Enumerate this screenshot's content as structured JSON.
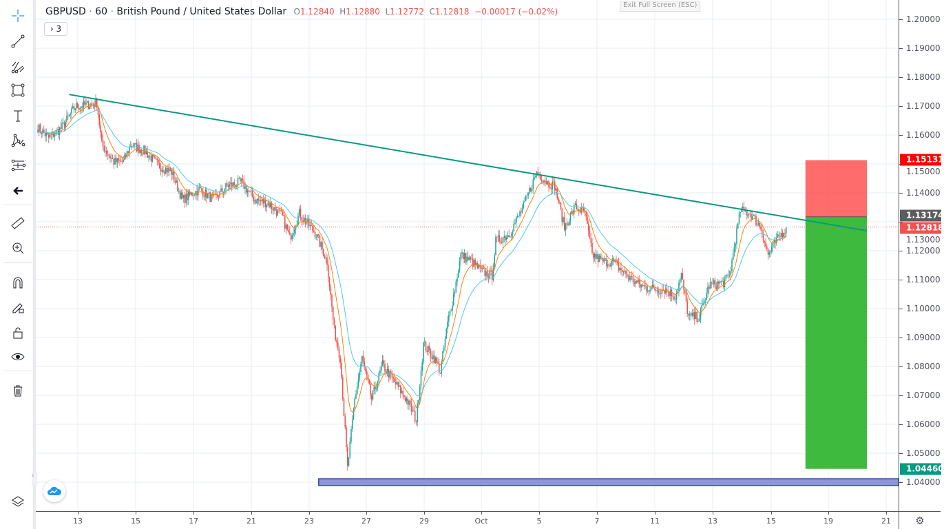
{
  "header": {
    "symbol": "GBPUSD",
    "interval": "60",
    "description": "British Pound / United States Dollar",
    "separator": "·",
    "open_label": "O",
    "open": "1.12840",
    "high_label": "H",
    "high": "1.12880",
    "low_label": "L",
    "low": "1.12772",
    "close_label": "C",
    "close": "1.12818",
    "change": "−0.00017 (−0.02%)",
    "indicators_toggle": "› 3",
    "exit_fullscreen": "Exit Full Screen (ESC)"
  },
  "toolbar": {
    "items": [
      "crosshair-icon",
      "trend-line-icon",
      "pitchfork-icon",
      "rectangle-icon",
      "text-icon",
      "pattern-icon",
      "long-position-icon",
      "back-arrow-icon",
      "ruler-icon",
      "zoom-in-icon",
      "magnet-icon",
      "draw-lock-pencil-icon",
      "unlock-icon",
      "eye-icon",
      "trash-icon",
      "layers-icon"
    ]
  },
  "price_axis": {
    "labels": [
      "1.20000",
      "1.19000",
      "1.18000",
      "1.17000",
      "1.16000",
      "1.15000",
      "1.14000",
      "1.13000",
      "1.12000",
      "1.11000",
      "1.10000",
      "1.09000",
      "1.08000",
      "1.07000",
      "1.06000",
      "1.05000",
      "1.04000"
    ],
    "tags": [
      {
        "text": "1.15131",
        "price": 1.15131,
        "color": "#ff0000"
      },
      {
        "text": "1.13174",
        "price": 1.13174,
        "color": "#5d5d5d"
      },
      {
        "text": "1.12818",
        "price": 1.12818,
        "color": "#ef5350"
      },
      {
        "text": "1.04460",
        "price": 1.0446,
        "color": "#089981"
      }
    ]
  },
  "time_axis": {
    "labels": [
      "13",
      "15",
      "17",
      "21",
      "23",
      "27",
      "29",
      "Oct",
      "5",
      "7",
      "11",
      "13",
      "15",
      "19",
      "21"
    ]
  },
  "chart_data": {
    "type": "candlestick",
    "ylim": [
      1.035,
      1.2067
    ],
    "interval_minutes": 60,
    "price_path": [
      [
        0,
        1.1626
      ],
      [
        9,
        1.159
      ],
      [
        20,
        1.1626
      ],
      [
        31,
        1.1698
      ],
      [
        49,
        1.171
      ],
      [
        53,
        1.1567
      ],
      [
        63,
        1.1507
      ],
      [
        71,
        1.1507
      ],
      [
        77,
        1.1567
      ],
      [
        89,
        1.1543
      ],
      [
        100,
        1.1495
      ],
      [
        111,
        1.1471
      ],
      [
        120,
        1.1376
      ],
      [
        134,
        1.1412
      ],
      [
        146,
        1.1376
      ],
      [
        157,
        1.1424
      ],
      [
        169,
        1.1436
      ],
      [
        180,
        1.1376
      ],
      [
        191,
        1.1364
      ],
      [
        203,
        1.1317
      ],
      [
        209,
        1.1245
      ],
      [
        217,
        1.1329
      ],
      [
        231,
        1.1257
      ],
      [
        240,
        1.1162
      ],
      [
        246,
        1.0924
      ],
      [
        251,
        1.0829
      ],
      [
        257,
        1.0448
      ],
      [
        263,
        1.0686
      ],
      [
        269,
        1.0829
      ],
      [
        277,
        1.0686
      ],
      [
        286,
        1.0805
      ],
      [
        294,
        1.0757
      ],
      [
        306,
        1.0686
      ],
      [
        314,
        1.0614
      ],
      [
        320,
        1.0876
      ],
      [
        329,
        1.0829
      ],
      [
        334,
        1.0781
      ],
      [
        340,
        1.0948
      ],
      [
        346,
        1.1067
      ],
      [
        351,
        1.1186
      ],
      [
        360,
        1.1162
      ],
      [
        369,
        1.1126
      ],
      [
        377,
        1.1114
      ],
      [
        380,
        1.1233
      ],
      [
        391,
        1.1257
      ],
      [
        403,
        1.1352
      ],
      [
        414,
        1.1471
      ],
      [
        423,
        1.1436
      ],
      [
        429,
        1.1424
      ],
      [
        437,
        1.1281
      ],
      [
        446,
        1.1352
      ],
      [
        454,
        1.1329
      ],
      [
        460,
        1.1186
      ],
      [
        469,
        1.1162
      ],
      [
        477,
        1.1162
      ],
      [
        489,
        1.1114
      ],
      [
        500,
        1.1079
      ],
      [
        511,
        1.1067
      ],
      [
        520,
        1.1067
      ],
      [
        529,
        1.1043
      ],
      [
        534,
        1.1114
      ],
      [
        540,
        1.0971
      ],
      [
        549,
        1.0971
      ],
      [
        557,
        1.1079
      ],
      [
        569,
        1.109
      ],
      [
        574,
        1.1114
      ],
      [
        583,
        1.134
      ],
      [
        591,
        1.1329
      ],
      [
        600,
        1.1281
      ],
      [
        606,
        1.1186
      ],
      [
        611,
        1.1221
      ],
      [
        621,
        1.12818
      ]
    ],
    "up_color": "#26a69a",
    "down_color": "#ef5350",
    "moving_averages": [
      {
        "color": "#ff7f0e"
      },
      {
        "color": "#4dc9e6"
      }
    ],
    "trend_line": {
      "from": [
        26,
        1.174
      ],
      "to": [
        688,
        1.1269
      ],
      "color": "#089981"
    },
    "position": {
      "type": "long",
      "entry": 1.13174,
      "stop": 1.15131,
      "target": 1.0446,
      "from_bar": 637,
      "to_bar": 688,
      "stop_color": "#ff5252",
      "target_color": "#2eb52e"
    },
    "support_zone": {
      "top": 1.0412,
      "bottom": 1.0388,
      "from_bar": 233,
      "color": "#7986cb"
    },
    "last_price": 1.12818
  }
}
